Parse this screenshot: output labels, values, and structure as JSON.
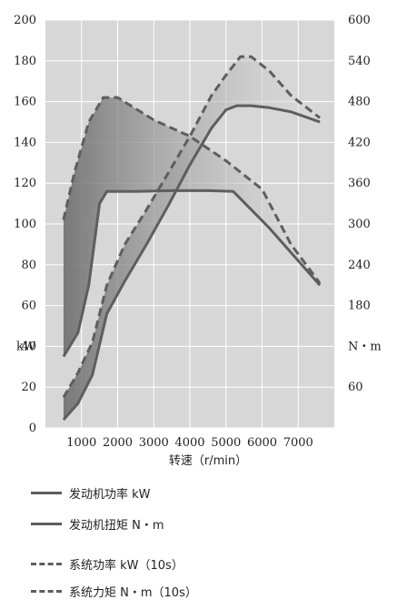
{
  "chart_data": {
    "type": "line",
    "xlabel": "转速（r/min）",
    "left_unit": "kW",
    "right_unit": "N・m",
    "x_ticks": [
      1000,
      2000,
      3000,
      4000,
      5000,
      6000,
      7000
    ],
    "left_ticks": [
      0,
      20,
      40,
      60,
      80,
      100,
      120,
      140,
      160,
      180,
      200
    ],
    "right_ticks": [
      60,
      180,
      240,
      300,
      360,
      420,
      480,
      540,
      600
    ],
    "xlim": [
      0,
      8000
    ],
    "left_ylim": [
      0,
      200
    ],
    "right_ylim": [
      0,
      600
    ],
    "grid": true,
    "series": [
      {
        "name": "发动机功率 kW",
        "style": "solid",
        "axis": "left",
        "x": [
          500,
          900,
          1300,
          1700,
          2200,
          2800,
          3400,
          4000,
          4600,
          5000,
          5300,
          5700,
          6200,
          6800,
          7600
        ],
        "y": [
          4,
          12,
          26,
          56,
          72,
          90,
          109,
          129,
          147,
          156,
          158,
          158,
          157,
          155,
          150
        ]
      },
      {
        "name": "发动机扭矩 N・m",
        "style": "solid",
        "axis": "right",
        "x": [
          500,
          900,
          1200,
          1500,
          1700,
          2500,
          3500,
          4500,
          5200,
          5700,
          6200,
          6800,
          7600
        ],
        "y": [
          105,
          140,
          210,
          330,
          348,
          348,
          349,
          349,
          348,
          321,
          294,
          258,
          210
        ]
      },
      {
        "name": "系统功率 kW（10s）",
        "style": "dashed",
        "axis": "left",
        "x": [
          500,
          900,
          1300,
          1700,
          2200,
          2800,
          3400,
          4000,
          4600,
          5000,
          5400,
          5700,
          6200,
          6800,
          7600
        ],
        "y": [
          15,
          27,
          42,
          70,
          90,
          107,
          125,
          143,
          163,
          173,
          182,
          182,
          175,
          163,
          152
        ]
      },
      {
        "name": "系统力矩 N・m（10s）",
        "style": "dashed",
        "axis": "right",
        "x": [
          500,
          800,
          1200,
          1600,
          2000,
          3000,
          4000,
          5000,
          6000,
          6800,
          7600
        ],
        "y": [
          306,
          375,
          450,
          486,
          486,
          453,
          429,
          393,
          351,
          270,
          213
        ]
      }
    ],
    "colors": {
      "plot_bg": "#d7d7d7",
      "grid": "#ffffff",
      "line": "#5e5e5e",
      "fill_dark": "#6e6e6e",
      "fill_light": "#e0e0e0"
    }
  }
}
